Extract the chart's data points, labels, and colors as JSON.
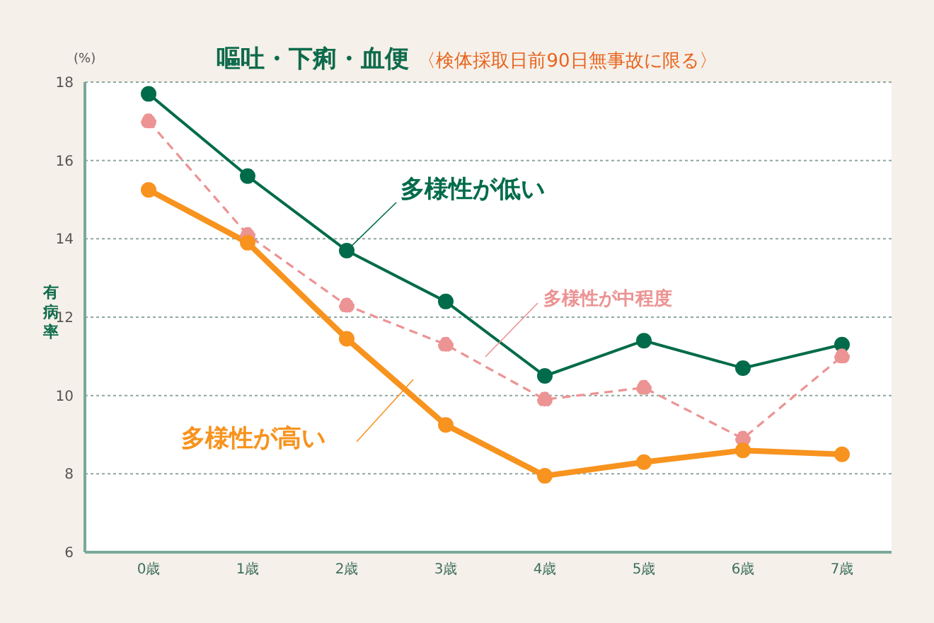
{
  "chart_data": {
    "type": "line",
    "title": "嘔吐・下痢・血便",
    "subtitle": "〈検体採取日前90日無事故に限る〉",
    "ylabel": "有病率",
    "annotations": [
      "(%)"
    ],
    "categories": [
      "0歳",
      "1歳",
      "2歳",
      "3歳",
      "4歳",
      "5歳",
      "6歳",
      "7歳"
    ],
    "series": [
      {
        "name": "多様性が低い",
        "color": "#006b4a",
        "line_style": "solid",
        "values": [
          17.7,
          15.6,
          13.7,
          12.4,
          10.5,
          11.4,
          10.7,
          11.3
        ]
      },
      {
        "name": "多様性が中程度",
        "color": "#ec9393",
        "line_style": "dashed",
        "values": [
          17.0,
          14.1,
          12.3,
          11.3,
          9.9,
          10.2,
          8.9,
          11.0
        ]
      },
      {
        "name": "多様性が高い",
        "color": "#f7931e",
        "line_style": "solid",
        "values": [
          15.25,
          13.9,
          11.45,
          9.25,
          7.95,
          8.3,
          8.6,
          8.5
        ]
      }
    ],
    "ylim": [
      6,
      18
    ],
    "yticks": [
      6,
      8,
      10,
      12,
      14,
      16,
      18
    ],
    "grid": "y",
    "legend": false,
    "marker": "circle"
  }
}
